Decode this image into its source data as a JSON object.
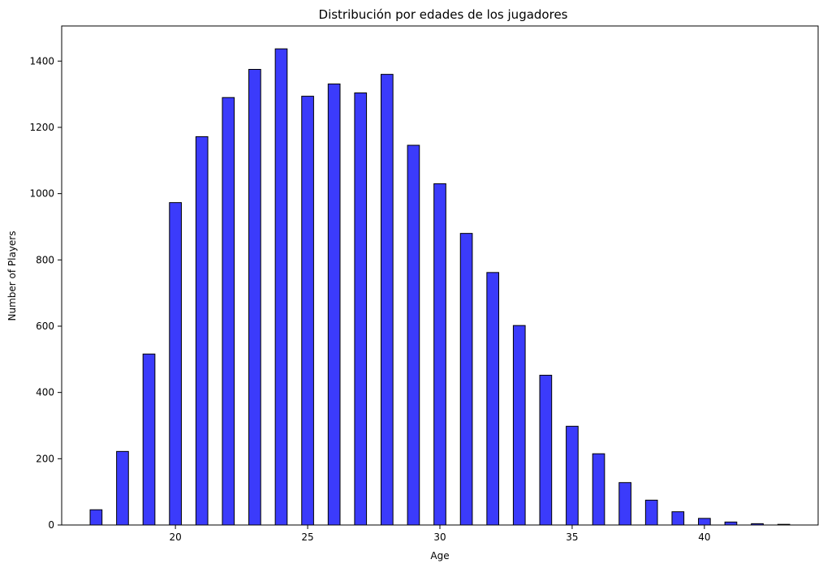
{
  "chart_data": {
    "type": "bar",
    "title": "Distribución por edades de los jugadores",
    "xlabel": "Age",
    "ylabel": "Number of Players",
    "xlim": [
      15.7,
      44.3
    ],
    "ylim": [
      0,
      1506
    ],
    "x_ticks": [
      20,
      25,
      30,
      35,
      40
    ],
    "y_ticks": [
      0,
      200,
      400,
      600,
      800,
      1000,
      1200,
      1400
    ],
    "grid": false,
    "bar_color": "#3b3bfb",
    "edge_color": "#000000",
    "bar_width_years": 0.45,
    "ages": [
      17,
      18,
      19,
      20,
      21,
      22,
      23,
      24,
      25,
      26,
      27,
      28,
      29,
      30,
      31,
      32,
      33,
      34,
      35,
      36,
      37,
      38,
      39,
      40,
      41,
      42,
      43
    ],
    "counts": [
      46,
      222,
      516,
      973,
      1172,
      1290,
      1375,
      1437,
      1294,
      1331,
      1304,
      1360,
      1146,
      1030,
      880,
      762,
      602,
      452,
      298,
      215,
      128,
      75,
      40,
      20,
      9,
      4,
      2
    ]
  }
}
